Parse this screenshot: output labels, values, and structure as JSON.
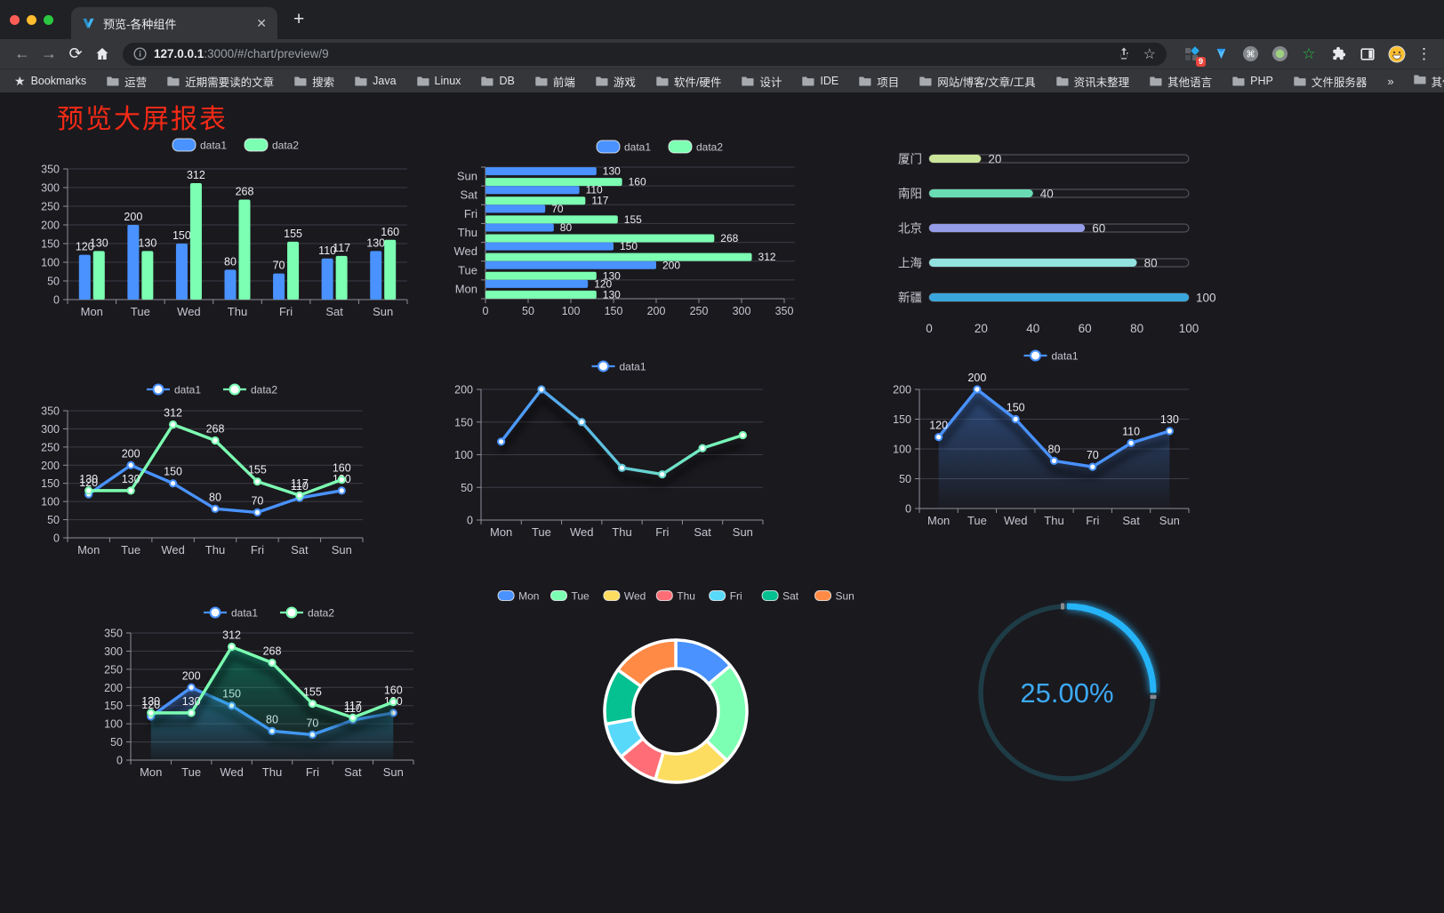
{
  "browser": {
    "tab": {
      "title": "预览-各种组件",
      "close_glyph": "✕",
      "new_tab_glyph": "+"
    },
    "nav": {
      "back_glyph": "←",
      "forward_glyph": "→",
      "reload_glyph": "⟳",
      "home_name": "home"
    },
    "url": {
      "host": "127.0.0.1",
      "rest": ":3000/#/chart/preview/9"
    },
    "extensions_badge": "9",
    "menu_glyph": "⋮",
    "bookmarks_label": "Bookmarks",
    "bookmarks": [
      "运营",
      "近期需要读的文章",
      "搜索",
      "Java",
      "Linux",
      "DB",
      "前端",
      "游戏",
      "软件/硬件",
      "设计",
      "IDE",
      "项目",
      "网站/博客/文章/工具",
      "资讯未整理",
      "其他语言",
      "PHP",
      "文件服务器"
    ],
    "bookmarks_overflow_glyph": "»",
    "other_bookmarks_label": "其他书签"
  },
  "page": {
    "title": "预览大屏报表"
  },
  "palette": {
    "blue": "#4992ff",
    "green": "#7cffb2",
    "axis": "#8f8f99",
    "tick_label": "#c6c6d0",
    "split_line": "#3c3c46",
    "value_label": "#ececf2"
  },
  "chart_data": [
    {
      "id": "c1",
      "type": "bar",
      "orientation": "vertical",
      "legend": [
        "data1",
        "data2"
      ],
      "categories": [
        "Mon",
        "Tue",
        "Wed",
        "Thu",
        "Fri",
        "Sat",
        "Sun"
      ],
      "series": [
        {
          "name": "data1",
          "color": "#4992ff",
          "values": [
            120,
            200,
            150,
            80,
            70,
            110,
            130
          ]
        },
        {
          "name": "data2",
          "color": "#7cffb2",
          "values": [
            130,
            130,
            312,
            268,
            155,
            117,
            160
          ]
        }
      ],
      "ylim": [
        0,
        350
      ],
      "ytick": 50
    },
    {
      "id": "c2",
      "type": "bar",
      "orientation": "horizontal",
      "legend": [
        "data1",
        "data2"
      ],
      "categories": [
        "Mon",
        "Tue",
        "Wed",
        "Thu",
        "Fri",
        "Sat",
        "Sun"
      ],
      "categories_top_to_bottom": [
        "Sun",
        "Sat",
        "Fri",
        "Thu",
        "Wed",
        "Tue",
        "Mon"
      ],
      "series": [
        {
          "name": "data1",
          "color": "#4992ff",
          "values": [
            120,
            200,
            150,
            80,
            70,
            110,
            130
          ]
        },
        {
          "name": "data2",
          "color": "#7cffb2",
          "values": [
            130,
            130,
            312,
            268,
            155,
            117,
            160
          ]
        }
      ],
      "xlim": [
        0,
        350
      ],
      "xtick": 50
    },
    {
      "id": "c3",
      "type": "bar",
      "subtype": "progress",
      "categories": [
        "厦门",
        "南阳",
        "北京",
        "上海",
        "新疆"
      ],
      "values": [
        20,
        40,
        60,
        80,
        100
      ],
      "colors": [
        "#cbe69a",
        "#69dcb4",
        "#959ce8",
        "#92e2df",
        "#3aa7dc"
      ],
      "xlim": [
        0,
        100
      ],
      "xticks": [
        0,
        20,
        40,
        60,
        80,
        100
      ]
    },
    {
      "id": "c4",
      "type": "line",
      "legend": [
        "data1",
        "data2"
      ],
      "point_labels": true,
      "area": false,
      "categories": [
        "Mon",
        "Tue",
        "Wed",
        "Thu",
        "Fri",
        "Sat",
        "Sun"
      ],
      "series": [
        {
          "name": "data1",
          "color": "#4992ff",
          "values": [
            120,
            200,
            150,
            80,
            70,
            110,
            130
          ]
        },
        {
          "name": "data2",
          "color": "#7cffb2",
          "values": [
            130,
            130,
            312,
            268,
            155,
            117,
            160
          ]
        }
      ],
      "ylim": [
        0,
        350
      ],
      "ytick": 50
    },
    {
      "id": "c5",
      "type": "line",
      "legend": [
        "data1"
      ],
      "point_labels": false,
      "area": false,
      "shadow": true,
      "categories": [
        "Mon",
        "Tue",
        "Wed",
        "Thu",
        "Fri",
        "Sat",
        "Sun"
      ],
      "series": [
        {
          "name": "data1",
          "gradient": [
            "#4992ff",
            "#7cffb2"
          ],
          "values": [
            120,
            200,
            150,
            80,
            70,
            110,
            130
          ]
        }
      ],
      "ylim": [
        0,
        200
      ],
      "ytick": 50
    },
    {
      "id": "c6",
      "type": "line",
      "legend": [
        "data1"
      ],
      "point_labels": true,
      "area": true,
      "shadow": true,
      "categories": [
        "Mon",
        "Tue",
        "Wed",
        "Thu",
        "Fri",
        "Sat",
        "Sun"
      ],
      "series": [
        {
          "name": "data1",
          "color": "#4992ff",
          "area_color": "73,146,255",
          "values": [
            120,
            200,
            150,
            80,
            70,
            110,
            130
          ]
        }
      ],
      "ylim": [
        0,
        200
      ],
      "ytick": 50
    },
    {
      "id": "c7",
      "type": "line",
      "legend": [
        "data1",
        "data2"
      ],
      "point_labels": true,
      "area": true,
      "shadow": true,
      "categories": [
        "Mon",
        "Tue",
        "Wed",
        "Thu",
        "Fri",
        "Sat",
        "Sun"
      ],
      "series": [
        {
          "name": "data1",
          "color": "#4992ff",
          "area_color": "73,146,255",
          "values": [
            120,
            200,
            150,
            80,
            70,
            110,
            130
          ]
        },
        {
          "name": "data2",
          "color": "#7cffb2",
          "area_color": "5,192,145",
          "values": [
            130,
            130,
            312,
            268,
            155,
            117,
            160
          ]
        }
      ],
      "ylim": [
        0,
        350
      ],
      "ytick": 50
    },
    {
      "id": "c8",
      "type": "pie",
      "donut": true,
      "categories": [
        "Mon",
        "Tue",
        "Wed",
        "Thu",
        "Fri",
        "Sat",
        "Sun"
      ],
      "values": [
        120,
        200,
        150,
        80,
        70,
        110,
        130
      ],
      "colors": [
        "#4992ff",
        "#7cffb2",
        "#fddd60",
        "#ff6e76",
        "#58d9f9",
        "#05c091",
        "#ff8a45"
      ]
    },
    {
      "id": "c9",
      "type": "gauge",
      "value": 25,
      "label": "25.00%",
      "track_color": "#1e3c46",
      "progress_color": "#25b4f8",
      "text_color": "#3ca9f5"
    }
  ]
}
